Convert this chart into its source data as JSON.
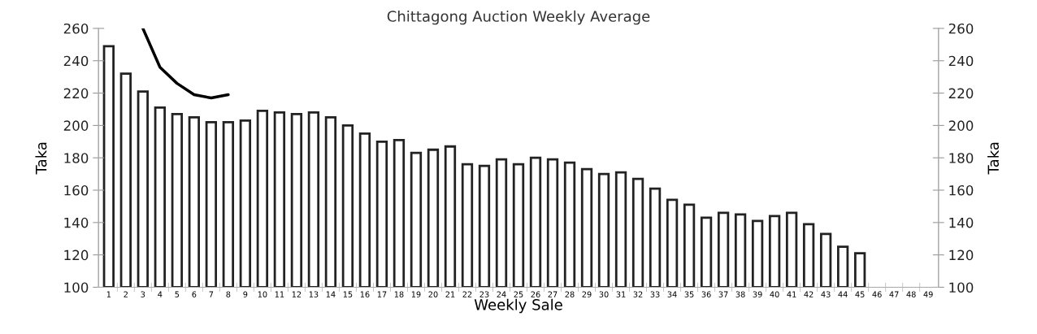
{
  "chart_data": {
    "type": "bar",
    "title": "Chittagong Auction Weekly Average",
    "xlabel": "Weekly Sale",
    "ylabel": "Taka",
    "y2label": "Taka",
    "categories": [
      "1",
      "2",
      "3",
      "4",
      "5",
      "6",
      "7",
      "8",
      "9",
      "10",
      "11",
      "12",
      "13",
      "14",
      "15",
      "16",
      "17",
      "18",
      "19",
      "20",
      "21",
      "22",
      "23",
      "24",
      "25",
      "26",
      "27",
      "28",
      "29",
      "30",
      "31",
      "32",
      "33",
      "34",
      "35",
      "36",
      "37",
      "38",
      "39",
      "40",
      "41",
      "42",
      "43",
      "44",
      "45",
      "46",
      "47",
      "48",
      "49"
    ],
    "series": [
      {
        "color": "#ffffff",
        "values": [
          249,
          232,
          221,
          211,
          207,
          205,
          202,
          202,
          203,
          209,
          208,
          207,
          208,
          205,
          200,
          195,
          190,
          191,
          183,
          185,
          187,
          176,
          175,
          179,
          176,
          180,
          179,
          177,
          173,
          170,
          171,
          167,
          161,
          154,
          151,
          143,
          146,
          145,
          141,
          144,
          146,
          139,
          133,
          125,
          121,
          null,
          null,
          null,
          null
        ]
      },
      {
        "type": "line",
        "color": "#000000",
        "values": [
          null,
          null,
          260,
          236,
          226,
          219,
          217,
          219,
          null,
          null,
          null,
          null,
          null,
          null,
          null,
          null,
          null,
          null,
          null,
          null,
          null,
          null,
          null,
          null,
          null,
          null,
          null,
          null,
          null,
          null,
          null,
          null,
          null,
          null,
          null,
          null,
          null,
          null,
          null,
          null,
          null,
          null,
          null,
          null,
          null,
          null,
          null,
          null,
          null
        ]
      }
    ],
    "ylim": [
      100,
      260
    ],
    "yticks": [
      100,
      120,
      140,
      160,
      180,
      200,
      220,
      240,
      260
    ],
    "y2lim": [
      100,
      260
    ],
    "y2ticks": [
      100,
      120,
      140,
      160,
      180,
      200,
      220,
      240,
      260
    ],
    "grid": false
  }
}
